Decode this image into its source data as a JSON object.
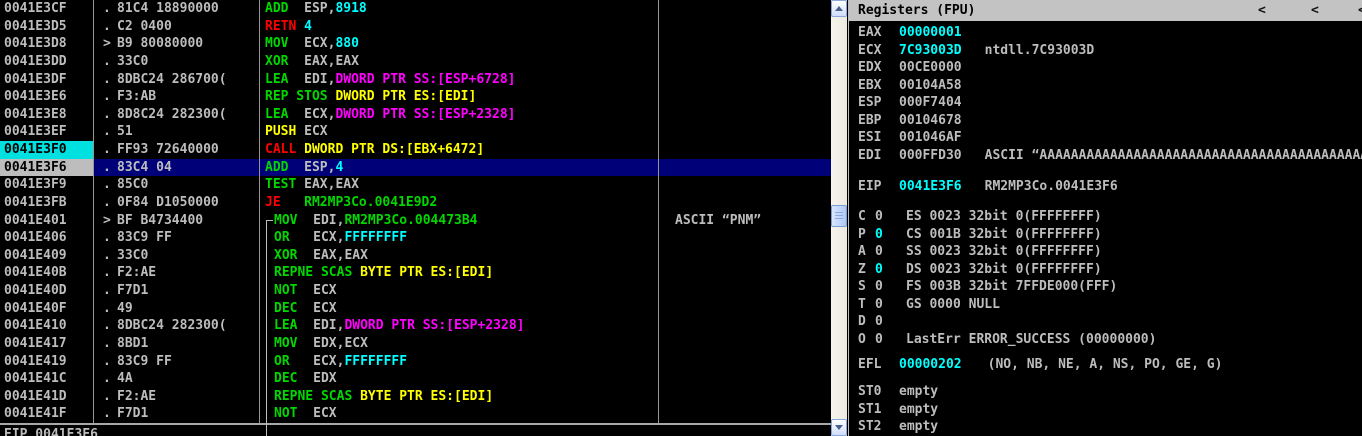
{
  "colors": {
    "g": "#00d800",
    "r": "#ff0000",
    "y": "#ffff00",
    "m": "#ff00ff",
    "c": "#00ffff",
    "w": "#bdbdbd",
    "selected_row_bg": "#000078",
    "highlight_address_bg": "#00e0e0",
    "panel_header_bg": "#c3c3c3"
  },
  "disassembly": {
    "rows": [
      {
        "addr": "0041E3CF",
        "prefix": ".",
        "bytes": "81C4 18890000",
        "insn": [
          [
            "ADD  ",
            "g"
          ],
          [
            "ESP,",
            "w"
          ],
          [
            "8918",
            "c"
          ]
        ],
        "comment": "",
        "addr_bg": "",
        "selected": false,
        "bracket": false
      },
      {
        "addr": "0041E3D5",
        "prefix": ".",
        "bytes": "C2 0400",
        "insn": [
          [
            "RETN ",
            "r"
          ],
          [
            "4",
            "c"
          ]
        ],
        "comment": "",
        "addr_bg": "",
        "selected": false,
        "bracket": false
      },
      {
        "addr": "0041E3D8",
        "prefix": ">",
        "bytes": "B9 80080000",
        "insn": [
          [
            "MOV  ",
            "g"
          ],
          [
            "ECX,",
            "w"
          ],
          [
            "880",
            "c"
          ]
        ],
        "comment": "",
        "addr_bg": "",
        "selected": false,
        "bracket": false
      },
      {
        "addr": "0041E3DD",
        "prefix": ".",
        "bytes": "33C0",
        "insn": [
          [
            "XOR  ",
            "g"
          ],
          [
            "EAX,EAX",
            "w"
          ]
        ],
        "comment": "",
        "addr_bg": "",
        "selected": false,
        "bracket": false
      },
      {
        "addr": "0041E3DF",
        "prefix": ".",
        "bytes": "8DBC24 286700(",
        "insn": [
          [
            "LEA  ",
            "g"
          ],
          [
            "EDI,",
            "w"
          ],
          [
            "DWORD PTR SS:[ESP+6728]",
            "m"
          ]
        ],
        "comment": "",
        "addr_bg": "",
        "selected": false,
        "bracket": false
      },
      {
        "addr": "0041E3E6",
        "prefix": ".",
        "bytes": "F3:AB",
        "insn": [
          [
            "REP STOS ",
            "g"
          ],
          [
            "DWORD PTR ES:[EDI]",
            "y"
          ]
        ],
        "comment": "",
        "addr_bg": "",
        "selected": false,
        "bracket": false
      },
      {
        "addr": "0041E3E8",
        "prefix": ".",
        "bytes": "8D8C24 282300(",
        "insn": [
          [
            "LEA  ",
            "g"
          ],
          [
            "ECX,",
            "w"
          ],
          [
            "DWORD PTR SS:[ESP+2328]",
            "m"
          ]
        ],
        "comment": "",
        "addr_bg": "",
        "selected": false,
        "bracket": false
      },
      {
        "addr": "0041E3EF",
        "prefix": ".",
        "bytes": "51",
        "insn": [
          [
            "PUSH ",
            "y"
          ],
          [
            "ECX",
            "w"
          ]
        ],
        "comment": "",
        "addr_bg": "",
        "selected": false,
        "bracket": false
      },
      {
        "addr": "0041E3F0",
        "prefix": ".",
        "bytes": "FF93 72640000",
        "insn": [
          [
            "CALL ",
            "r"
          ],
          [
            "DWORD PTR DS:[EBX+6472]",
            "y"
          ]
        ],
        "comment": "",
        "addr_bg": "cyan",
        "selected": false,
        "bracket": false
      },
      {
        "addr": "0041E3F6",
        "prefix": ".",
        "bytes": "83C4 04",
        "insn": [
          [
            "ADD  ",
            "g"
          ],
          [
            "ESP,",
            "w"
          ],
          [
            "4",
            "c"
          ]
        ],
        "comment": "",
        "addr_bg": "sel",
        "selected": true,
        "bracket": false
      },
      {
        "addr": "0041E3F9",
        "prefix": ".",
        "bytes": "85C0",
        "insn": [
          [
            "TEST ",
            "g"
          ],
          [
            "EAX,EAX",
            "w"
          ]
        ],
        "comment": "",
        "addr_bg": "",
        "selected": false,
        "bracket": false
      },
      {
        "addr": "0041E3FB",
        "prefix": ".",
        "bytes": "0F84 D1050000",
        "insn": [
          [
            "JE   ",
            "r"
          ],
          [
            "RM2MP3Co.0041E9D2",
            "g"
          ]
        ],
        "comment": "",
        "addr_bg": "",
        "selected": false,
        "bracket": false
      },
      {
        "addr": "0041E401",
        "prefix": ">",
        "bytes": "BF B4734400",
        "insn": [
          [
            "MOV  ",
            "g"
          ],
          [
            "EDI,",
            "w"
          ],
          [
            "RM2MP3Co.004473B4",
            "g"
          ]
        ],
        "comment": "ASCII “PNM”",
        "addr_bg": "",
        "selected": false,
        "bracket": true
      },
      {
        "addr": "0041E406",
        "prefix": ".",
        "bytes": "83C9 FF",
        "insn": [
          [
            "OR   ",
            "g"
          ],
          [
            "ECX,",
            "w"
          ],
          [
            "FFFFFFFF",
            "c"
          ]
        ],
        "comment": "",
        "addr_bg": "",
        "selected": false,
        "bracket": true
      },
      {
        "addr": "0041E409",
        "prefix": ".",
        "bytes": "33C0",
        "insn": [
          [
            "XOR  ",
            "g"
          ],
          [
            "EAX,EAX",
            "w"
          ]
        ],
        "comment": "",
        "addr_bg": "",
        "selected": false,
        "bracket": true
      },
      {
        "addr": "0041E40B",
        "prefix": ".",
        "bytes": "F2:AE",
        "insn": [
          [
            "REPNE SCAS ",
            "g"
          ],
          [
            "BYTE PTR ES:[EDI]",
            "y"
          ]
        ],
        "comment": "",
        "addr_bg": "",
        "selected": false,
        "bracket": true
      },
      {
        "addr": "0041E40D",
        "prefix": ".",
        "bytes": "F7D1",
        "insn": [
          [
            "NOT  ",
            "g"
          ],
          [
            "ECX",
            "w"
          ]
        ],
        "comment": "",
        "addr_bg": "",
        "selected": false,
        "bracket": true
      },
      {
        "addr": "0041E40F",
        "prefix": ".",
        "bytes": "49",
        "insn": [
          [
            "DEC  ",
            "g"
          ],
          [
            "ECX",
            "w"
          ]
        ],
        "comment": "",
        "addr_bg": "",
        "selected": false,
        "bracket": true
      },
      {
        "addr": "0041E410",
        "prefix": ".",
        "bytes": "8DBC24 282300(",
        "insn": [
          [
            "LEA  ",
            "g"
          ],
          [
            "EDI,",
            "w"
          ],
          [
            "DWORD PTR SS:[ESP+2328]",
            "m"
          ]
        ],
        "comment": "",
        "addr_bg": "",
        "selected": false,
        "bracket": true
      },
      {
        "addr": "0041E417",
        "prefix": ".",
        "bytes": "8BD1",
        "insn": [
          [
            "MOV  ",
            "g"
          ],
          [
            "EDX,ECX",
            "w"
          ]
        ],
        "comment": "",
        "addr_bg": "",
        "selected": false,
        "bracket": true
      },
      {
        "addr": "0041E419",
        "prefix": ".",
        "bytes": "83C9 FF",
        "insn": [
          [
            "OR   ",
            "g"
          ],
          [
            "ECX,",
            "w"
          ],
          [
            "FFFFFFFF",
            "c"
          ]
        ],
        "comment": "",
        "addr_bg": "",
        "selected": false,
        "bracket": true
      },
      {
        "addr": "0041E41C",
        "prefix": ".",
        "bytes": "4A",
        "insn": [
          [
            "DEC  ",
            "g"
          ],
          [
            "EDX",
            "w"
          ]
        ],
        "comment": "",
        "addr_bg": "",
        "selected": false,
        "bracket": true
      },
      {
        "addr": "0041E41D",
        "prefix": ".",
        "bytes": "F2:AE",
        "insn": [
          [
            "REPNE SCAS ",
            "g"
          ],
          [
            "BYTE PTR ES:[EDI]",
            "y"
          ]
        ],
        "comment": "",
        "addr_bg": "",
        "selected": false,
        "bracket": true
      },
      {
        "addr": "0041E41F",
        "prefix": ".",
        "bytes": "F7D1",
        "insn": [
          [
            "NOT  ",
            "g"
          ],
          [
            "ECX",
            "w"
          ]
        ],
        "comment": "",
        "addr_bg": "",
        "selected": false,
        "bracket": true
      }
    ],
    "partial_info": "EIP 0041E3F6"
  },
  "registers_panel": {
    "title": "Registers (FPU)",
    "chevrons": [
      "<",
      "<",
      "<"
    ],
    "registers": [
      {
        "name": "EAX",
        "value": "00000001",
        "changed": true,
        "comment": ""
      },
      {
        "name": "ECX",
        "value": "7C93003D",
        "changed": true,
        "comment": "ntdll.7C93003D"
      },
      {
        "name": "EDX",
        "value": "00CE0000",
        "changed": false,
        "comment": ""
      },
      {
        "name": "EBX",
        "value": "00104A58",
        "changed": false,
        "comment": ""
      },
      {
        "name": "ESP",
        "value": "000F7404",
        "changed": false,
        "comment": ""
      },
      {
        "name": "EBP",
        "value": "00104678",
        "changed": false,
        "comment": ""
      },
      {
        "name": "ESI",
        "value": "001046AF",
        "changed": false,
        "comment": ""
      },
      {
        "name": "EDI",
        "value": "000FFD30",
        "changed": false,
        "comment": "ASCII “AAAAAAAAAAAAAAAAAAAAAAAAAAAAAAAAAAAAAAAAAAAA"
      }
    ],
    "eip": {
      "name": "EIP",
      "value": "0041E3F6",
      "changed": true,
      "comment": "RM2MP3Co.0041E3F6"
    },
    "flags": [
      {
        "letter": "C",
        "value": "0",
        "changed": false,
        "seg": "ES 0023 32bit 0(FFFFFFFF)"
      },
      {
        "letter": "P",
        "value": "0",
        "changed": true,
        "seg": "CS 001B 32bit 0(FFFFFFFF)"
      },
      {
        "letter": "A",
        "value": "0",
        "changed": false,
        "seg": "SS 0023 32bit 0(FFFFFFFF)"
      },
      {
        "letter": "Z",
        "value": "0",
        "changed": true,
        "seg": "DS 0023 32bit 0(FFFFFFFF)"
      },
      {
        "letter": "S",
        "value": "0",
        "changed": false,
        "seg": "FS 003B 32bit 7FFDE000(FFF)"
      },
      {
        "letter": "T",
        "value": "0",
        "changed": false,
        "seg": "GS 0000 NULL"
      },
      {
        "letter": "D",
        "value": "0",
        "changed": false,
        "seg": ""
      },
      {
        "letter": "O",
        "value": "0",
        "changed": false,
        "seg": "LastErr ERROR_SUCCESS (00000000)"
      }
    ],
    "efl": {
      "name": "EFL",
      "value": "00000202",
      "changed": true,
      "decode": "(NO, NB, NE, A, NS, PO, GE, G)"
    },
    "fpu": [
      {
        "name": "ST0",
        "value": "empty"
      },
      {
        "name": "ST1",
        "value": "empty"
      },
      {
        "name": "ST2",
        "value": "empty"
      }
    ]
  }
}
